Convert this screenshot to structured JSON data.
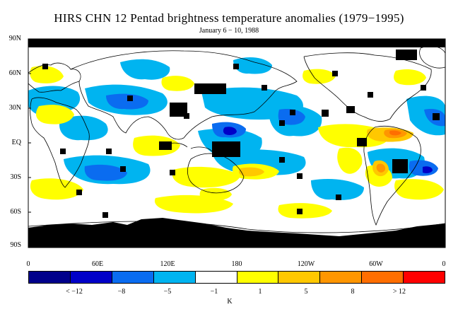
{
  "title": "HIRS CHN 12 Pentad brightness temperature anomalies (1979−1995)",
  "subtitle": "January 6 − 10, 1988",
  "lat_labels": [
    "90N",
    "60N",
    "30N",
    "EQ",
    "30S",
    "60S",
    "90S"
  ],
  "lon_labels": [
    "0",
    "60E",
    "120E",
    "180",
    "120W",
    "60W",
    "0"
  ],
  "colorbar": {
    "colors": [
      "#00008b",
      "#0000c8",
      "#0a6cf0",
      "#00b4f0",
      "#ffffff",
      "#ffff00",
      "#ffc800",
      "#ff9600",
      "#ff6e00",
      "#ff0000"
    ],
    "labels": [
      "< −12",
      "−8",
      "−5",
      "−1",
      "1",
      "5",
      "8",
      "> 12"
    ],
    "unit": "K"
  },
  "colors": {
    "missing": "#000000",
    "coastline": "#000000"
  }
}
